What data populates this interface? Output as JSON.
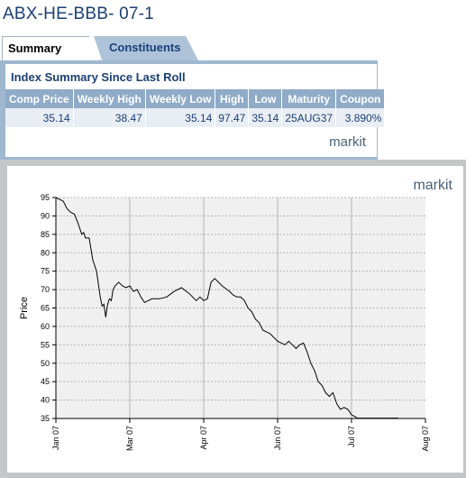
{
  "header": {
    "title": "ABX-HE-BBB- 07-1"
  },
  "tabs": [
    {
      "label": "Summary",
      "active": true
    },
    {
      "label": "Constituents",
      "active": false
    }
  ],
  "summary": {
    "heading": "Index Summary Since Last Roll",
    "columns": [
      "Comp Price",
      "Weekly High",
      "Weekly Low",
      "High",
      "Low",
      "Maturity",
      "Coupon"
    ],
    "row": [
      "35.14",
      "38.47",
      "35.14",
      "97.47",
      "35.14",
      "25AUG37",
      "3.890%"
    ],
    "brand": "markit"
  },
  "colors": {
    "accent": "#1b3f73",
    "header_bg": "#8fabc8",
    "cell_bg": "#e9eef4",
    "tab_inactive": "#aec3d9"
  },
  "chart": {
    "brand": "markit",
    "ylabel": "Price",
    "yticks": [
      "35",
      "40",
      "45",
      "50",
      "55",
      "60",
      "65",
      "70",
      "75",
      "80",
      "85",
      "90",
      "95"
    ],
    "xticks": [
      "Jan 07",
      "Mar 07",
      "Apr 07",
      "Jun 07",
      "Jul 07",
      "Aug 07"
    ]
  },
  "chart_data": {
    "type": "line",
    "ylabel": "Price",
    "ylim": [
      35,
      95
    ],
    "xlim": [
      0,
      1
    ],
    "grid": true,
    "x": [
      0.0,
      0.02,
      0.03,
      0.04,
      0.05,
      0.06,
      0.07,
      0.075,
      0.08,
      0.09,
      0.1,
      0.11,
      0.12,
      0.125,
      0.13,
      0.135,
      0.14,
      0.145,
      0.15,
      0.155,
      0.16,
      0.17,
      0.18,
      0.19,
      0.2,
      0.21,
      0.22,
      0.23,
      0.24,
      0.25,
      0.26,
      0.28,
      0.3,
      0.32,
      0.34,
      0.36,
      0.38,
      0.39,
      0.4,
      0.41,
      0.42,
      0.43,
      0.45,
      0.47,
      0.48,
      0.49,
      0.5,
      0.51,
      0.52,
      0.53,
      0.54,
      0.55,
      0.56,
      0.58,
      0.6,
      0.62,
      0.63,
      0.64,
      0.65,
      0.66,
      0.67,
      0.68,
      0.69,
      0.7,
      0.71,
      0.72,
      0.73,
      0.74,
      0.75,
      0.76,
      0.77,
      0.78,
      0.79,
      0.8,
      0.81,
      0.815,
      0.82,
      0.83,
      0.84,
      0.85,
      0.86,
      0.87,
      0.88,
      0.89,
      0.9,
      0.905,
      0.91,
      0.915,
      0.92,
      0.925
    ],
    "y": [
      95,
      94,
      92,
      91,
      90.5,
      88,
      85,
      85.5,
      84,
      84,
      78,
      75,
      68,
      65.5,
      66,
      62.5,
      66,
      67.5,
      67,
      70,
      71,
      72,
      71,
      70.5,
      71,
      69.5,
      70,
      68,
      66.5,
      67,
      67.5,
      67.5,
      68,
      69.5,
      70.5,
      69,
      67,
      68,
      67,
      67.5,
      72,
      73,
      71,
      69.5,
      68.5,
      68,
      68,
      67,
      65,
      64,
      62,
      61,
      59,
      58,
      56,
      55,
      56,
      55,
      54,
      55,
      55.5,
      53,
      50,
      48,
      45,
      44,
      42,
      41,
      42,
      39,
      37.5,
      38,
      37.5,
      36,
      35.5,
      35.1,
      35.1,
      35.1,
      35.1,
      35.1,
      35.1,
      35.1,
      35.1,
      35.1,
      35.1,
      35.1,
      35.1,
      35.1,
      35.1,
      35.14
    ]
  }
}
